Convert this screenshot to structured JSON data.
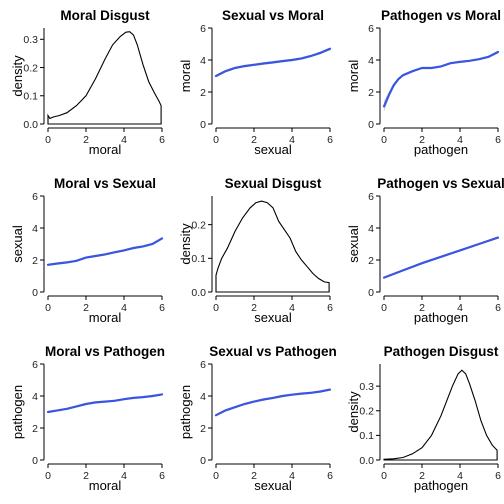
{
  "chart_data": [
    {
      "type": "area",
      "title": "Moral Disgust",
      "xlabel": "moral",
      "ylabel": "density",
      "xlim": [
        0,
        6
      ],
      "ylim": [
        0,
        0.34
      ],
      "xticks": [
        0,
        2,
        4,
        6
      ],
      "yticks": [
        0.0,
        0.1,
        0.2,
        0.3
      ],
      "ytick_labels": [
        "0.0",
        "0.1",
        "0.2",
        "0.3"
      ],
      "series": [
        {
          "x": [
            0,
            0.1,
            0.3,
            0.6,
            1.0,
            1.5,
            2.0,
            2.5,
            3.0,
            3.4,
            3.8,
            4.1,
            4.3,
            4.5,
            4.7,
            5.0,
            5.3,
            5.6,
            5.85,
            5.95
          ],
          "y": [
            0.03,
            0.02,
            0.025,
            0.03,
            0.04,
            0.065,
            0.1,
            0.16,
            0.23,
            0.28,
            0.31,
            0.325,
            0.327,
            0.315,
            0.28,
            0.21,
            0.15,
            0.11,
            0.08,
            0.065
          ]
        }
      ]
    },
    {
      "type": "line",
      "title": "Sexual vs Moral",
      "xlabel": "sexual",
      "ylabel": "moral",
      "xlim": [
        0,
        6
      ],
      "ylim": [
        0,
        6
      ],
      "xticks": [
        0,
        2,
        4,
        6
      ],
      "yticks": [
        0,
        2,
        4,
        6
      ],
      "ytick_labels": [
        "0",
        "2",
        "4",
        "6"
      ],
      "series": [
        {
          "x": [
            0,
            0.5,
            1,
            1.5,
            2,
            2.5,
            3,
            3.5,
            4,
            4.5,
            5,
            5.5,
            6
          ],
          "y": [
            3.0,
            3.3,
            3.5,
            3.62,
            3.7,
            3.78,
            3.85,
            3.93,
            4.0,
            4.1,
            4.25,
            4.45,
            4.7
          ],
          "band": 0.08
        }
      ]
    },
    {
      "type": "line",
      "title": "Pathogen vs Moral",
      "xlabel": "pathogen",
      "ylabel": "moral",
      "xlim": [
        0,
        6
      ],
      "ylim": [
        0,
        6
      ],
      "xticks": [
        0,
        2,
        4,
        6
      ],
      "yticks": [
        0,
        2,
        4,
        6
      ],
      "ytick_labels": [
        "0",
        "2",
        "4",
        "6"
      ],
      "series": [
        {
          "x": [
            0,
            0.25,
            0.5,
            0.75,
            1,
            1.5,
            2,
            2.5,
            3,
            3.5,
            4,
            4.5,
            5,
            5.5,
            6
          ],
          "y": [
            1.1,
            1.8,
            2.4,
            2.8,
            3.05,
            3.3,
            3.5,
            3.5,
            3.6,
            3.8,
            3.88,
            3.95,
            4.05,
            4.2,
            4.5
          ],
          "band": [
            0.35,
            0.22,
            0.14,
            0.1,
            0.08,
            0.06,
            0.05,
            0.05,
            0.05,
            0.05,
            0.05,
            0.05,
            0.06,
            0.07,
            0.1
          ]
        }
      ]
    },
    {
      "type": "line",
      "title": "Moral vs Sexual",
      "xlabel": "moral",
      "ylabel": "sexual",
      "xlim": [
        0,
        6
      ],
      "ylim": [
        0,
        6
      ],
      "xticks": [
        0,
        2,
        4,
        6
      ],
      "yticks": [
        0,
        2,
        4,
        6
      ],
      "ytick_labels": [
        "0",
        "2",
        "4",
        "6"
      ],
      "series": [
        {
          "x": [
            0,
            0.5,
            1,
            1.5,
            2,
            2.5,
            3,
            3.5,
            4,
            4.5,
            5,
            5.5,
            6
          ],
          "y": [
            1.7,
            1.78,
            1.85,
            1.95,
            2.15,
            2.25,
            2.35,
            2.48,
            2.6,
            2.75,
            2.85,
            3.0,
            3.35
          ],
          "band": 0.07
        }
      ]
    },
    {
      "type": "area",
      "title": "Sexual Disgust",
      "xlabel": "sexual",
      "ylabel": "density",
      "xlim": [
        0,
        6
      ],
      "ylim": [
        0,
        0.285
      ],
      "xticks": [
        0,
        2,
        4,
        6
      ],
      "yticks": [
        0.0,
        0.1,
        0.2
      ],
      "ytick_labels": [
        "0.0",
        "0.1",
        "0.2"
      ],
      "series": [
        {
          "x": [
            0,
            0.1,
            0.3,
            0.6,
            1.0,
            1.4,
            1.8,
            2.1,
            2.4,
            2.7,
            3.0,
            3.3,
            3.6,
            3.9,
            4.2,
            4.5,
            4.8,
            5.1,
            5.4,
            5.7,
            5.95
          ],
          "y": [
            0.05,
            0.07,
            0.1,
            0.13,
            0.18,
            0.22,
            0.25,
            0.265,
            0.27,
            0.265,
            0.25,
            0.21,
            0.185,
            0.16,
            0.12,
            0.095,
            0.075,
            0.055,
            0.04,
            0.03,
            0.028
          ]
        }
      ]
    },
    {
      "type": "line",
      "title": "Pathogen vs Sexual",
      "xlabel": "pathogen",
      "ylabel": "sexual",
      "xlim": [
        0,
        6
      ],
      "ylim": [
        0,
        6
      ],
      "xticks": [
        0,
        2,
        4,
        6
      ],
      "yticks": [
        0,
        2,
        4,
        6
      ],
      "ytick_labels": [
        "0",
        "2",
        "4",
        "6"
      ],
      "series": [
        {
          "x": [
            0,
            1,
            2,
            3,
            4,
            5,
            6
          ],
          "y": [
            0.9,
            1.35,
            1.8,
            2.2,
            2.6,
            3.0,
            3.4
          ],
          "band": 0.06
        }
      ]
    },
    {
      "type": "line",
      "title": "Moral vs Pathogen",
      "xlabel": "moral",
      "ylabel": "pathogen",
      "xlim": [
        0,
        6
      ],
      "ylim": [
        0,
        6
      ],
      "xticks": [
        0,
        2,
        4,
        6
      ],
      "yticks": [
        0,
        2,
        4,
        6
      ],
      "ytick_labels": [
        "0",
        "2",
        "4",
        "6"
      ],
      "series": [
        {
          "x": [
            0,
            0.5,
            1,
            1.5,
            2,
            2.5,
            3,
            3.5,
            4,
            4.5,
            5,
            5.5,
            6
          ],
          "y": [
            3.0,
            3.1,
            3.2,
            3.35,
            3.5,
            3.6,
            3.65,
            3.7,
            3.8,
            3.88,
            3.93,
            4.0,
            4.1
          ],
          "band": 0.06
        }
      ]
    },
    {
      "type": "line",
      "title": "Sexual vs Pathogen",
      "xlabel": "sexual",
      "ylabel": "pathogen",
      "xlim": [
        0,
        6
      ],
      "ylim": [
        0,
        6
      ],
      "xticks": [
        0,
        2,
        4,
        6
      ],
      "yticks": [
        0,
        2,
        4,
        6
      ],
      "ytick_labels": [
        "0",
        "2",
        "4",
        "6"
      ],
      "series": [
        {
          "x": [
            0,
            0.5,
            1,
            1.5,
            2,
            2.5,
            3,
            3.5,
            4,
            4.5,
            5,
            5.5,
            6
          ],
          "y": [
            2.8,
            3.1,
            3.3,
            3.5,
            3.65,
            3.78,
            3.88,
            4.0,
            4.08,
            4.15,
            4.2,
            4.28,
            4.4
          ],
          "band": 0.07
        }
      ]
    },
    {
      "type": "area",
      "title": "Pathogen Disgust",
      "xlabel": "pathogen",
      "ylabel": "density",
      "xlim": [
        0,
        6
      ],
      "ylim": [
        0,
        0.39
      ],
      "xticks": [
        0,
        2,
        4,
        6
      ],
      "yticks": [
        0.0,
        0.1,
        0.2,
        0.3
      ],
      "ytick_labels": [
        "0.0",
        "0.1",
        "0.2",
        "0.3"
      ],
      "series": [
        {
          "x": [
            0,
            0.5,
            1.0,
            1.5,
            2.0,
            2.5,
            3.0,
            3.3,
            3.6,
            3.9,
            4.1,
            4.3,
            4.5,
            4.8,
            5.1,
            5.4,
            5.7,
            5.95
          ],
          "y": [
            0.003,
            0.005,
            0.01,
            0.025,
            0.05,
            0.1,
            0.18,
            0.24,
            0.3,
            0.35,
            0.365,
            0.35,
            0.31,
            0.24,
            0.16,
            0.1,
            0.06,
            0.04
          ]
        }
      ]
    }
  ]
}
